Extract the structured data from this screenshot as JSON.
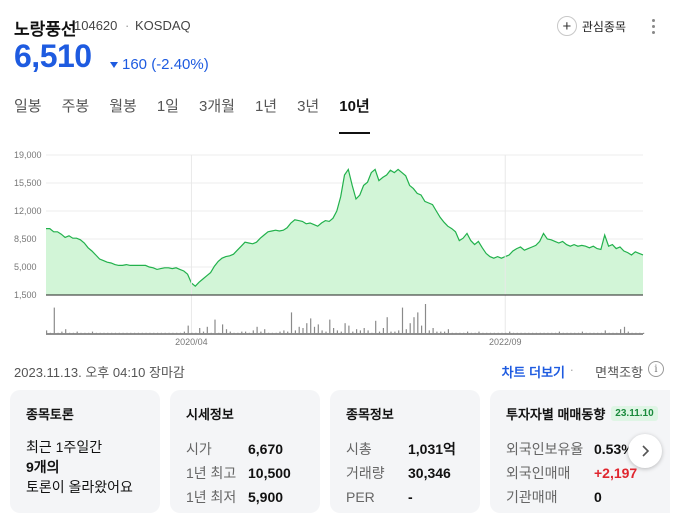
{
  "stock": {
    "name": "노랑풍선",
    "code": "104620",
    "separator": "·",
    "market": "KOSDAQ"
  },
  "actions": {
    "watch_label": "관심종목",
    "watch_icon": "plus-icon",
    "more_icon": "more-vertical-icon"
  },
  "quote": {
    "price": "6,510",
    "change": "160 (-2.40%)",
    "direction_icon": "down-triangle-icon",
    "color": "#1e5be0"
  },
  "tabs": [
    {
      "label": "일봉"
    },
    {
      "label": "주봉"
    },
    {
      "label": "월봉"
    },
    {
      "label": "1일"
    },
    {
      "label": "3개월"
    },
    {
      "label": "1년"
    },
    {
      "label": "3년"
    },
    {
      "label": "10년",
      "active": true
    }
  ],
  "chart_data": {
    "type": "area",
    "y_ticks": [
      "19,000",
      "15,500",
      "12,000",
      "8,500",
      "5,000",
      "1,500"
    ],
    "ylim": [
      1500,
      19000
    ],
    "x_ticks": [
      "2020/04",
      "2022/09"
    ],
    "grid": true,
    "line_color": "#22b14c",
    "fill_color": "#d2f5d7",
    "price_series": [
      9800,
      9800,
      9400,
      9400,
      9100,
      8700,
      8900,
      8600,
      8600,
      8400,
      8000,
      7400,
      7000,
      6500,
      6000,
      5800,
      5600,
      5500,
      5300,
      5200,
      5200,
      5300,
      5200,
      5200,
      5200,
      5200,
      5200,
      5000,
      4900,
      4700,
      4800,
      4900,
      4900,
      4800,
      4900,
      4700,
      4500,
      4100,
      3000,
      2600,
      3100,
      3500,
      3900,
      4300,
      5100,
      5700,
      6100,
      6300,
      6400,
      6600,
      7100,
      7600,
      8100,
      8000,
      7900,
      8100,
      8600,
      9000,
      9400,
      9500,
      9600,
      9500,
      9600,
      9900,
      10500,
      10900,
      10800,
      10700,
      10400,
      10500,
      10300,
      10100,
      10500,
      10800,
      10700,
      11100,
      12000,
      13800,
      16500,
      17200,
      15200,
      13500,
      14000,
      15200,
      15600,
      16800,
      17200,
      15800,
      16200,
      16500,
      17100,
      16800,
      17200,
      16800,
      16400,
      15200,
      14800,
      14200,
      14000,
      13200,
      13000,
      12800,
      12000,
      11200,
      10600,
      10100,
      9800,
      9400,
      8300,
      8600,
      9200,
      8300,
      7800,
      8200,
      7400,
      6700,
      6300,
      6100,
      6300,
      6100,
      6300,
      6500,
      7000,
      7300,
      7500,
      7100,
      7300,
      7500,
      7700,
      8200,
      9200,
      8500,
      8400,
      8200,
      8000,
      8200,
      7800,
      7600,
      7800,
      7600,
      7700,
      7600,
      7400,
      7600,
      7300,
      7200,
      9000,
      7600,
      7800,
      7300,
      7500,
      7000,
      6800,
      6500,
      6900,
      6700,
      6510
    ],
    "volume_series": [
      3,
      1,
      22,
      1,
      2,
      4,
      1,
      1,
      2,
      1,
      1,
      1,
      2,
      1,
      1,
      1,
      1,
      1,
      1,
      1,
      1,
      1,
      1,
      1,
      1,
      1,
      1,
      1,
      1,
      1,
      1,
      1,
      1,
      1,
      1,
      1,
      2,
      7,
      1,
      1,
      5,
      2,
      6,
      1,
      12,
      1,
      8,
      4,
      2,
      1,
      1,
      2,
      2,
      1,
      3,
      6,
      2,
      4,
      1,
      1,
      1,
      2,
      3,
      2,
      18,
      3,
      6,
      5,
      9,
      13,
      6,
      8,
      3,
      2,
      12,
      5,
      3,
      2,
      9,
      7,
      2,
      4,
      3,
      5,
      3,
      1,
      11,
      2,
      5,
      14,
      2,
      2,
      3,
      22,
      4,
      9,
      14,
      18,
      7,
      25,
      3,
      5,
      2,
      2,
      2,
      4,
      1,
      1,
      1,
      1,
      2,
      1,
      1,
      2,
      1,
      1,
      1,
      1,
      1,
      1,
      1,
      2,
      1,
      1,
      1,
      1,
      1,
      1,
      1,
      1,
      1,
      1,
      1,
      1,
      2,
      1,
      1,
      1,
      1,
      1,
      2,
      1,
      1,
      1,
      1,
      1,
      3,
      1,
      1,
      1,
      4,
      6,
      2,
      1,
      1,
      1,
      1
    ]
  },
  "footer": {
    "datetime": "2023.11.13. 오후 04:10 장마감",
    "chart_more": "차트 더보기",
    "dot": "·",
    "disclaimer": "면책조항",
    "info_icon": "info-icon",
    "info_glyph": "i"
  },
  "cards": {
    "discussion": {
      "title": "종목토론",
      "lines": [
        "최근 1주일간",
        "9개의",
        "토론이 올라왔어요"
      ]
    },
    "market": {
      "title": "시세정보",
      "rows": [
        {
          "label": "시가",
          "value": "6,670"
        },
        {
          "label": "1년 최고",
          "value": "10,500"
        },
        {
          "label": "1년 최저",
          "value": "5,900"
        }
      ]
    },
    "company": {
      "title": "종목정보",
      "rows": [
        {
          "label": "시총",
          "value": "1,031억"
        },
        {
          "label": "거래량",
          "value": "30,346"
        },
        {
          "label": "PER",
          "value": "-"
        }
      ]
    },
    "investor": {
      "title": "투자자별 매매동향",
      "badge": "23.11.10",
      "rows": [
        {
          "label": "외국인보유율",
          "value": "0.53%"
        },
        {
          "label": "외국인매매",
          "value": "+2,197"
        },
        {
          "label": "기관매매",
          "value": "0"
        }
      ]
    }
  },
  "next_icon": "chevron-right-icon"
}
